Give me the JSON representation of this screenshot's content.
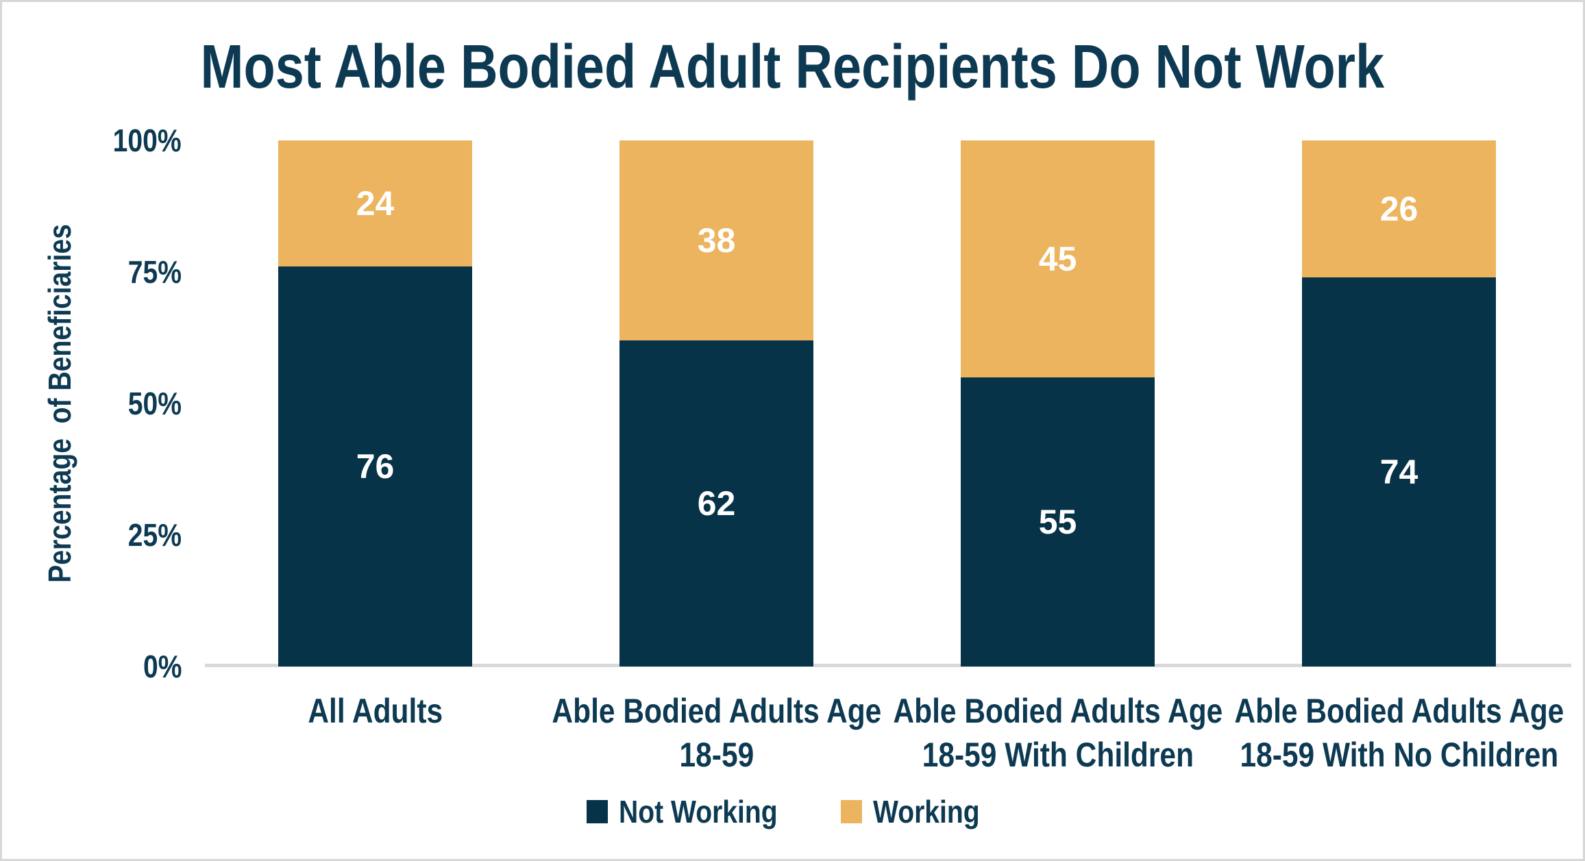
{
  "chart_data": {
    "type": "bar",
    "stacked": true,
    "title": "Most Able Bodied Adult Recipients Do Not Work",
    "xlabel": "",
    "ylabel": "Percentage  of Beneficiaries",
    "categories": [
      "All Adults",
      "Able Bodied Adults Age\n18-59",
      "Able Bodied Adults Age\n18-59 With Children",
      "Able Bodied Adults Age\n18-59 With No Children"
    ],
    "series": [
      {
        "name": "Not Working",
        "color": "#063348",
        "values": [
          76,
          62,
          55,
          74
        ]
      },
      {
        "name": "Working",
        "color": "#ECB45E",
        "values": [
          24,
          38,
          45,
          26
        ]
      }
    ],
    "ylim": [
      0,
      100
    ],
    "yticks": [
      "100%",
      "75%",
      "50%",
      "25%",
      "0%"
    ],
    "grid": false,
    "legend_position": "bottom",
    "data_label_color": "#FFFFFF",
    "text_color": "#0D3A52",
    "axis_line_color": "#D9D9D9"
  }
}
